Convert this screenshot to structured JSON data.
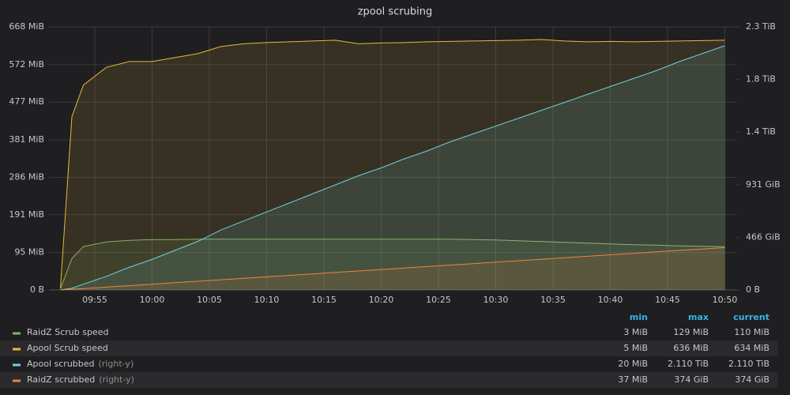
{
  "chart_data": {
    "type": "line",
    "title": "zpool scrubing",
    "x": [
      "09:52",
      "09:53",
      "09:54",
      "09:56",
      "09:58",
      "10:00",
      "10:02",
      "10:04",
      "10:06",
      "10:08",
      "10:10",
      "10:12",
      "10:14",
      "10:16",
      "10:18",
      "10:20",
      "10:22",
      "10:24",
      "10:26",
      "10:28",
      "10:30",
      "10:32",
      "10:34",
      "10:36",
      "10:38",
      "10:40",
      "10:42",
      "10:44",
      "10:46",
      "10:48",
      "10:50"
    ],
    "xlim": [
      "09:51",
      "10:51"
    ],
    "xticks": [
      "09:55",
      "10:00",
      "10:05",
      "10:10",
      "10:15",
      "10:20",
      "10:25",
      "10:30",
      "10:35",
      "10:40",
      "10:45",
      "10:50"
    ],
    "ylim": [
      0,
      668
    ],
    "yticks": [
      {
        "value": 0,
        "label": "0 B"
      },
      {
        "value": 95,
        "label": "95 MiB"
      },
      {
        "value": 191,
        "label": "191 MiB"
      },
      {
        "value": 286,
        "label": "286 MiB"
      },
      {
        "value": 381,
        "label": "381 MiB"
      },
      {
        "value": 477,
        "label": "477 MiB"
      },
      {
        "value": 572,
        "label": "572 MiB"
      },
      {
        "value": 668,
        "label": "668 MiB"
      }
    ],
    "y2lim": [
      0,
      2328
    ],
    "y2ticks": [
      {
        "value": 0,
        "label": "0 B"
      },
      {
        "value": 465.6,
        "label": "466 GiB"
      },
      {
        "value": 931.2,
        "label": "931 GiB"
      },
      {
        "value": 1396.8,
        "label": "1.4 TiB"
      },
      {
        "value": 1862.4,
        "label": "1.8 TiB"
      },
      {
        "value": 2328,
        "label": "2.3 TiB"
      }
    ],
    "grid": true,
    "legend_columns": [
      "min",
      "max",
      "current"
    ],
    "right_axis_note": "(right-y)",
    "series": [
      {
        "name": "RaidZ Scrub speed",
        "color": "#7eb26d",
        "axis": "y",
        "stats": [
          "3 MiB",
          "129 MiB",
          "110 MiB"
        ],
        "values": [
          3,
          80,
          110,
          122,
          126,
          128,
          128,
          129,
          129,
          129,
          129,
          129,
          129,
          129,
          129,
          129,
          129,
          129,
          129,
          128,
          127,
          125,
          123,
          121,
          119,
          117,
          115,
          114,
          112,
          111,
          110
        ]
      },
      {
        "name": "Apool Scrub speed",
        "color": "#eab839",
        "axis": "y",
        "stats": [
          "5 MiB",
          "636 MiB",
          "634 MiB"
        ],
        "values": [
          5,
          440,
          520,
          565,
          580,
          580,
          590,
          600,
          618,
          625,
          628,
          630,
          632,
          634,
          625,
          627,
          628,
          630,
          631,
          632,
          633,
          634,
          636,
          632,
          630,
          631,
          630,
          631,
          632,
          633,
          634
        ]
      },
      {
        "name": "Apool scrubbed",
        "color": "#6ed0e0",
        "axis": "y2",
        "stats": [
          "20 MiB",
          "2.110 TiB",
          "2.110 TiB"
        ],
        "values": [
          0.02,
          15,
          50,
          120,
          200,
          270,
          350,
          430,
          530,
          610,
          690,
          770,
          850,
          930,
          1010,
          1080,
          1160,
          1230,
          1310,
          1380,
          1450,
          1520,
          1590,
          1660,
          1730,
          1800,
          1870,
          1940,
          2020,
          2090,
          2160.6
        ]
      },
      {
        "name": "RaidZ scrubbed",
        "color": "#ef843c",
        "axis": "y2",
        "stats": [
          "37 MiB",
          "374 GiB",
          "374 GiB"
        ],
        "values": [
          0.04,
          6,
          12,
          25,
          38,
          51,
          64,
          77,
          90,
          103,
          116,
          129,
          142,
          155,
          168,
          181,
          194,
          207,
          220,
          233,
          246,
          259,
          272,
          285,
          298,
          311,
          324,
          337,
          350,
          362,
          374
        ]
      }
    ]
  }
}
